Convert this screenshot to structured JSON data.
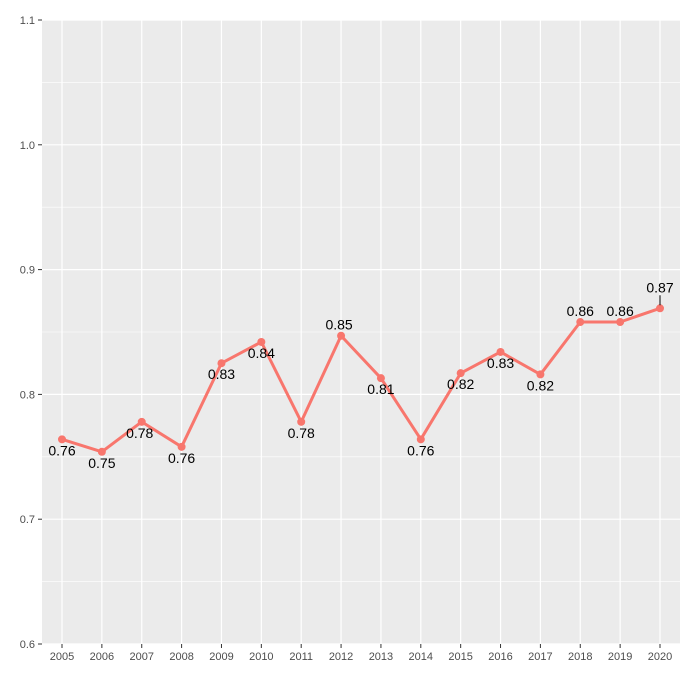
{
  "chart_data": {
    "type": "line",
    "title": "",
    "xlabel": "",
    "ylabel": "",
    "x": [
      "2005",
      "2006",
      "2007",
      "2008",
      "2009",
      "2010",
      "2011",
      "2012",
      "2013",
      "2014",
      "2015",
      "2016",
      "2017",
      "2018",
      "2019",
      "2020"
    ],
    "series": [
      {
        "values": [
          0.764,
          0.754,
          0.778,
          0.758,
          0.825,
          0.842,
          0.778,
          0.847,
          0.813,
          0.764,
          0.817,
          0.834,
          0.816,
          0.858,
          0.858,
          0.869
        ],
        "labels": [
          "0.76",
          "0.75",
          "0.78",
          "0.76",
          "0.83",
          "0.84",
          "0.78",
          "0.85",
          "0.81",
          "0.76",
          "0.82",
          "0.83",
          "0.82",
          "0.86",
          "0.86",
          "0.87"
        ],
        "color": "#F8766D"
      }
    ],
    "y_ticks": [
      "0.6",
      "0.7",
      "0.8",
      "0.9",
      "1.0",
      "1.1"
    ],
    "ylim": [
      0.6,
      1.1
    ],
    "grid": true,
    "legend": "none",
    "panel_background": "#EBEBEB",
    "gridline_color": "#FFFFFF"
  }
}
